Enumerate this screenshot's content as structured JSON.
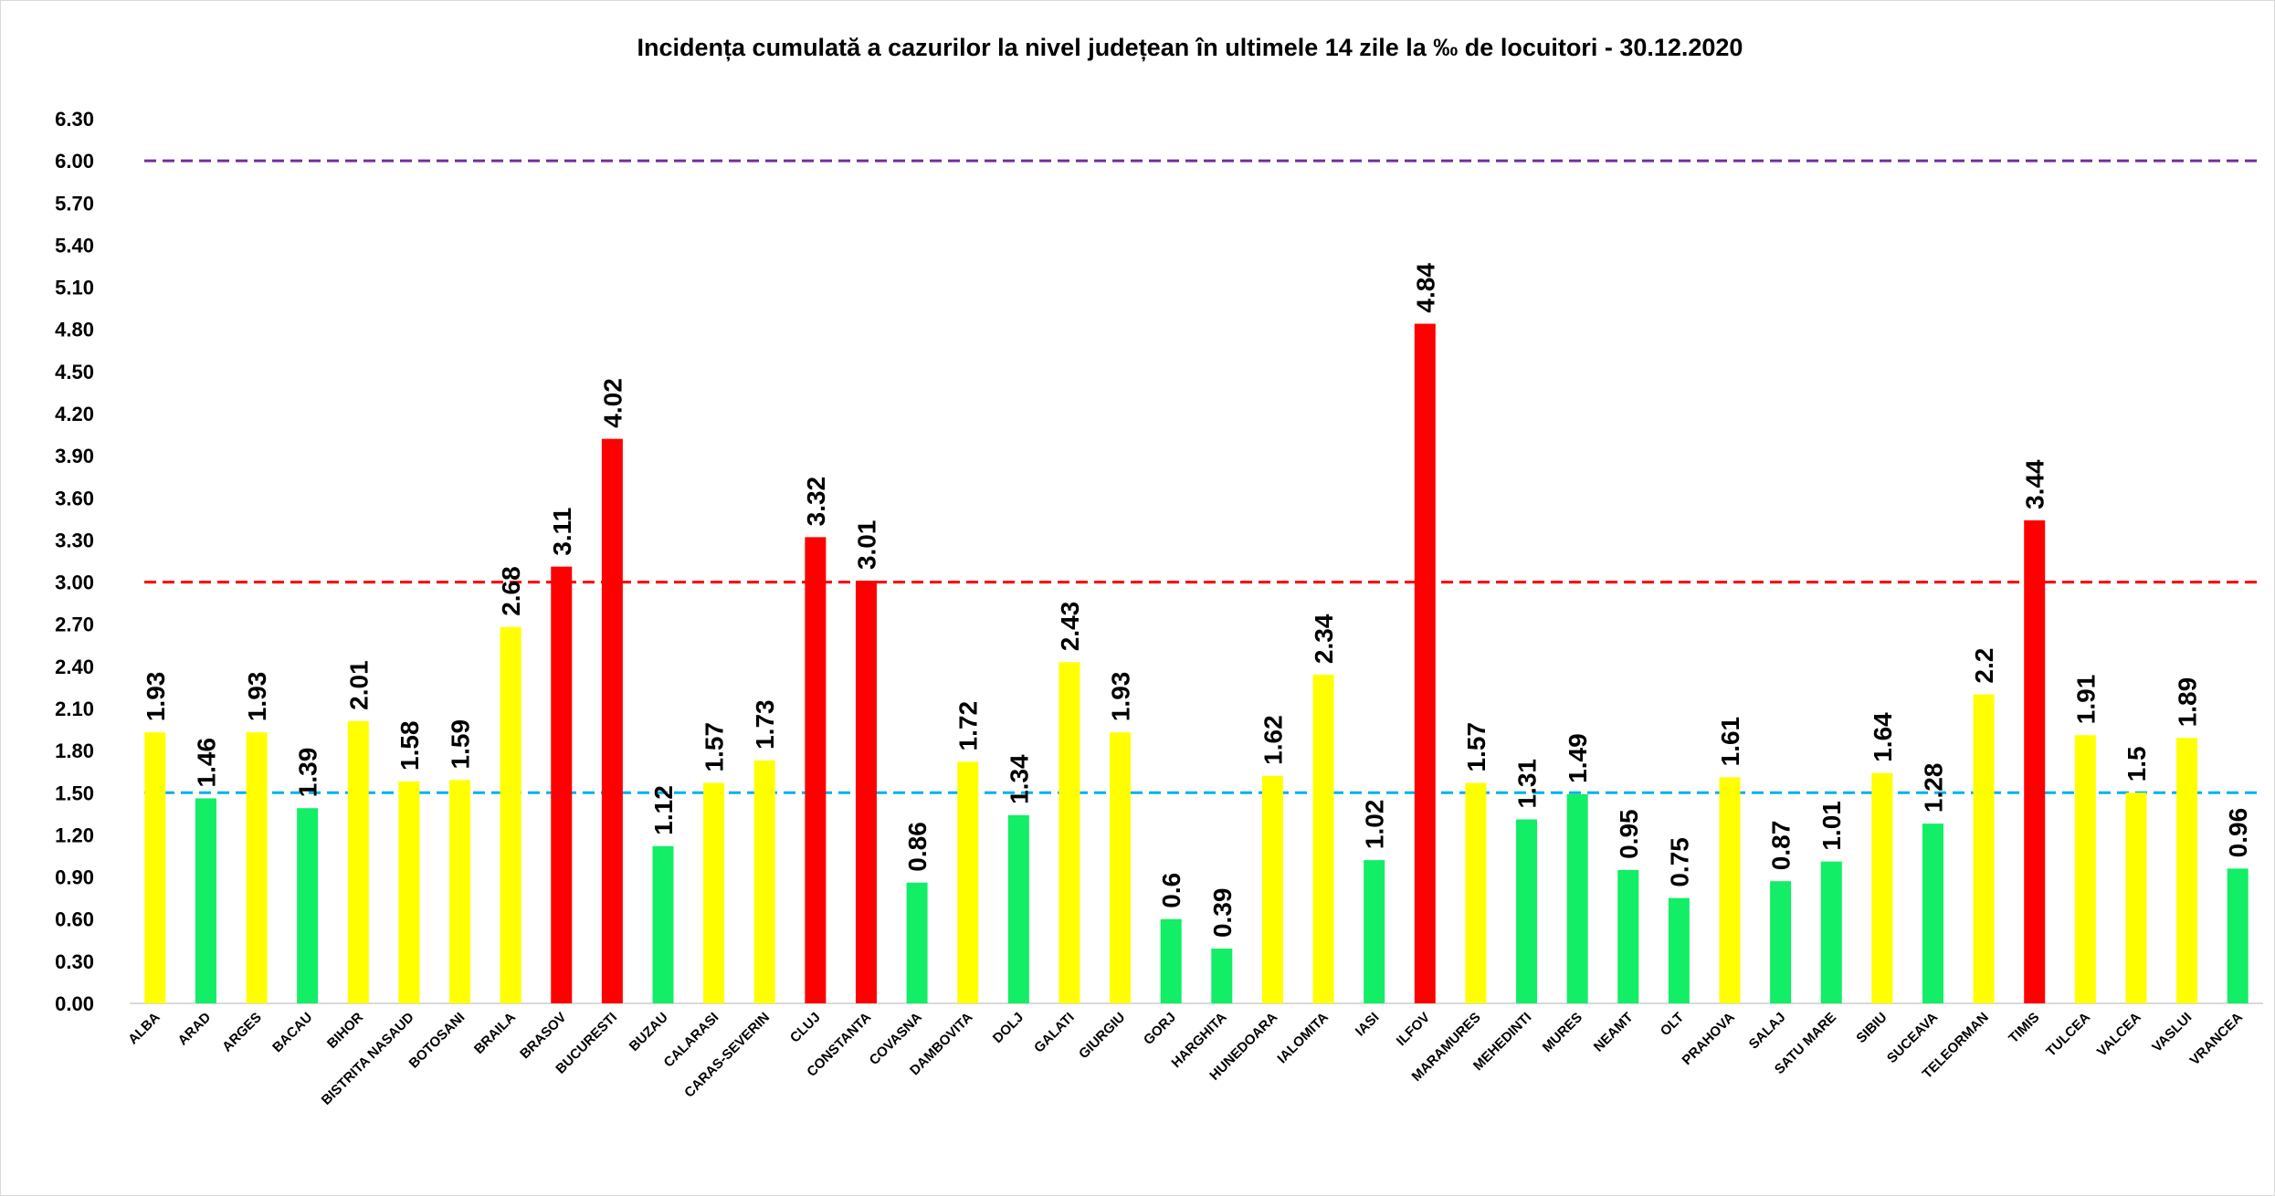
{
  "chart_data": {
    "type": "bar",
    "title": "Incidența cumulată a cazurilor la nivel județean în ultimele 14 zile la ‰ de locuitori - 30.12.2020",
    "xlabel": "",
    "ylabel": "",
    "ylim": [
      0,
      6.3
    ],
    "ytick_step": 0.3,
    "yticks": [
      "0.00",
      "0.30",
      "0.60",
      "0.90",
      "1.20",
      "1.50",
      "1.80",
      "2.10",
      "2.40",
      "2.70",
      "3.00",
      "3.30",
      "3.60",
      "3.90",
      "4.20",
      "4.50",
      "4.80",
      "5.10",
      "5.40",
      "5.70",
      "6.00",
      "6.30"
    ],
    "grid": false,
    "legend": "none",
    "categories": [
      "ALBA",
      "ARAD",
      "ARGES",
      "BACAU",
      "BIHOR",
      "BISTRITA NASAUD",
      "BOTOSANI",
      "BRAILA",
      "BRASOV",
      "BUCURESTI",
      "BUZAU",
      "CALARASI",
      "CARAS-SEVERIN",
      "CLUJ",
      "CONSTANTA",
      "COVASNA",
      "DAMBOVITA",
      "DOLJ",
      "GALATI",
      "GIURGIU",
      "GORJ",
      "HARGHITA",
      "HUNEDOARA",
      "IALOMITA",
      "IASI",
      "ILFOV",
      "MARAMURES",
      "MEHEDINTI",
      "MURES",
      "NEAMT",
      "OLT",
      "PRAHOVA",
      "SALAJ",
      "SATU MARE",
      "SIBIU",
      "SUCEAVA",
      "TELEORMAN",
      "TIMIS",
      "TULCEA",
      "VALCEA",
      "VASLUI",
      "VRANCEA"
    ],
    "values": [
      1.93,
      1.46,
      1.93,
      1.39,
      2.01,
      1.58,
      1.59,
      2.68,
      3.11,
      4.02,
      1.12,
      1.57,
      1.73,
      3.32,
      3.01,
      0.86,
      1.72,
      1.34,
      2.43,
      1.93,
      0.6,
      0.39,
      1.62,
      2.34,
      1.02,
      4.84,
      1.57,
      1.31,
      1.49,
      0.95,
      0.75,
      1.61,
      0.87,
      1.01,
      1.64,
      1.28,
      2.2,
      3.44,
      1.91,
      1.5,
      1.89,
      0.96
    ],
    "value_labels": [
      "1.93",
      "1.46",
      "1.93",
      "1.39",
      "2.01",
      "1.58",
      "1.59",
      "2.68",
      "3.11",
      "4.02",
      "1.12",
      "1.57",
      "1.73",
      "3.32",
      "3.01",
      "0.86",
      "1.72",
      "1.34",
      "2.43",
      "1.93",
      "0.6",
      "0.39",
      "1.62",
      "2.34",
      "1.02",
      "4.84",
      "1.57",
      "1.31",
      "1.49",
      "0.95",
      "0.75",
      "1.61",
      "0.87",
      "1.01",
      "1.64",
      "1.28",
      "2.2",
      "3.44",
      "1.91",
      "1.5",
      "1.89",
      "0.96"
    ],
    "bar_color_rule": "value < 1.5 → green; 1.5 ≤ value < 3 → yellow; value ≥ 3 → red",
    "colors": {
      "green": "#12ee66",
      "yellow": "#ffff00",
      "red": "#ff0000"
    },
    "thresholds": [
      {
        "value": 6.0,
        "color": "#7030a0",
        "style": "dashed"
      },
      {
        "value": 3.0,
        "color": "#ff0000",
        "style": "dashed"
      },
      {
        "value": 1.5,
        "color": "#00b0f0",
        "style": "dashed"
      }
    ]
  }
}
